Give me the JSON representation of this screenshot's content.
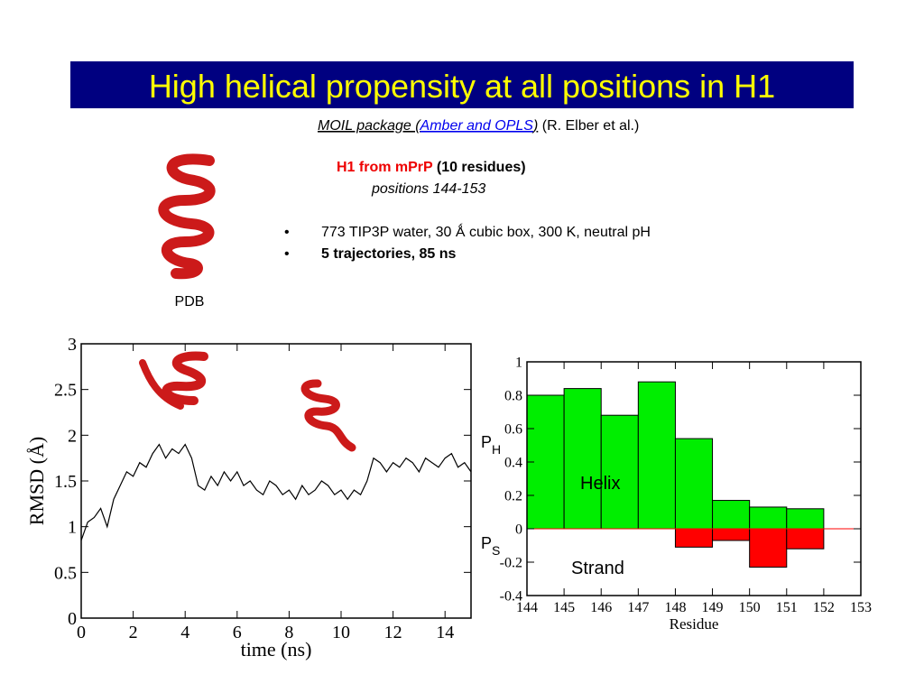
{
  "title": "High helical propensity at all positions in H1",
  "method": {
    "package_start": "MOIL package (",
    "force_fields": "Amber and OPLS",
    "package_end": ")",
    "credit": "(R. Elber et al.)"
  },
  "system": {
    "name": "H1 from mPrP",
    "size": "(10 residues)",
    "positions": "positions 144-153"
  },
  "bullets": [
    "773 TIP3P water, 30 Ǻ cubic box, 300 K, neutral pH",
    "5 trajectories, 85 ns"
  ],
  "bullet_symbol": "•",
  "structure_label": "PDB",
  "chart_data": [
    {
      "type": "line",
      "xlabel": "time (ns)",
      "ylabel": "RMSD (Å)",
      "color": "#000000",
      "x": [
        0,
        0.25,
        0.5,
        0.75,
        1,
        1.25,
        1.5,
        1.75,
        2,
        2.25,
        2.5,
        2.75,
        3,
        3.25,
        3.5,
        3.75,
        4,
        4.25,
        4.5,
        4.75,
        5,
        5.25,
        5.5,
        5.75,
        6,
        6.25,
        6.5,
        6.75,
        7,
        7.25,
        7.5,
        7.75,
        8,
        8.25,
        8.5,
        8.75,
        9,
        9.25,
        9.5,
        9.75,
        10,
        10.25,
        10.5,
        10.75,
        11,
        11.25,
        11.5,
        11.75,
        12,
        12.25,
        12.5,
        12.75,
        13,
        13.25,
        13.5,
        13.75,
        14,
        14.25,
        14.5,
        14.75,
        15
      ],
      "values": [
        0.85,
        1.05,
        1.1,
        1.2,
        1.0,
        1.3,
        1.45,
        1.6,
        1.55,
        1.7,
        1.65,
        1.8,
        1.9,
        1.75,
        1.85,
        1.8,
        1.9,
        1.75,
        1.45,
        1.4,
        1.55,
        1.45,
        1.6,
        1.5,
        1.6,
        1.45,
        1.5,
        1.4,
        1.35,
        1.5,
        1.45,
        1.35,
        1.4,
        1.3,
        1.45,
        1.35,
        1.4,
        1.5,
        1.45,
        1.35,
        1.4,
        1.3,
        1.4,
        1.35,
        1.5,
        1.75,
        1.7,
        1.6,
        1.7,
        1.65,
        1.75,
        1.7,
        1.6,
        1.75,
        1.7,
        1.65,
        1.75,
        1.8,
        1.65,
        1.7,
        1.6
      ],
      "xlim": [
        0,
        15
      ],
      "xticks": [
        0,
        2,
        4,
        6,
        8,
        10,
        12,
        14
      ],
      "ylim": [
        0,
        3
      ],
      "yticks": [
        0,
        0.5,
        1,
        1.5,
        2,
        2.5,
        3
      ]
    },
    {
      "type": "histogram",
      "xlabel": "Residue",
      "ylabel_helix": {
        "base": "P",
        "sub": "H"
      },
      "ylabel_strand": {
        "base": "P",
        "sub": "S"
      },
      "bins": [
        144,
        145,
        146,
        147,
        148,
        149,
        150,
        151,
        152
      ],
      "series": [
        {
          "name": "Helix",
          "color": "#00ee00",
          "values": [
            0.8,
            0.84,
            0.68,
            0.88,
            0.54,
            0.17,
            0.13,
            0.12
          ]
        },
        {
          "name": "Strand",
          "color": "#ff0000",
          "values": [
            0,
            0,
            0,
            0,
            -0.11,
            -0.07,
            -0.23,
            -0.12
          ]
        }
      ],
      "xlim": [
        144,
        153
      ],
      "xticks": [
        144,
        145,
        146,
        147,
        148,
        149,
        150,
        151,
        152,
        153
      ],
      "ylim": [
        -0.4,
        1
      ],
      "yticks": [
        -0.4,
        -0.2,
        0,
        0.2,
        0.4,
        0.6,
        0.8,
        1
      ]
    }
  ]
}
